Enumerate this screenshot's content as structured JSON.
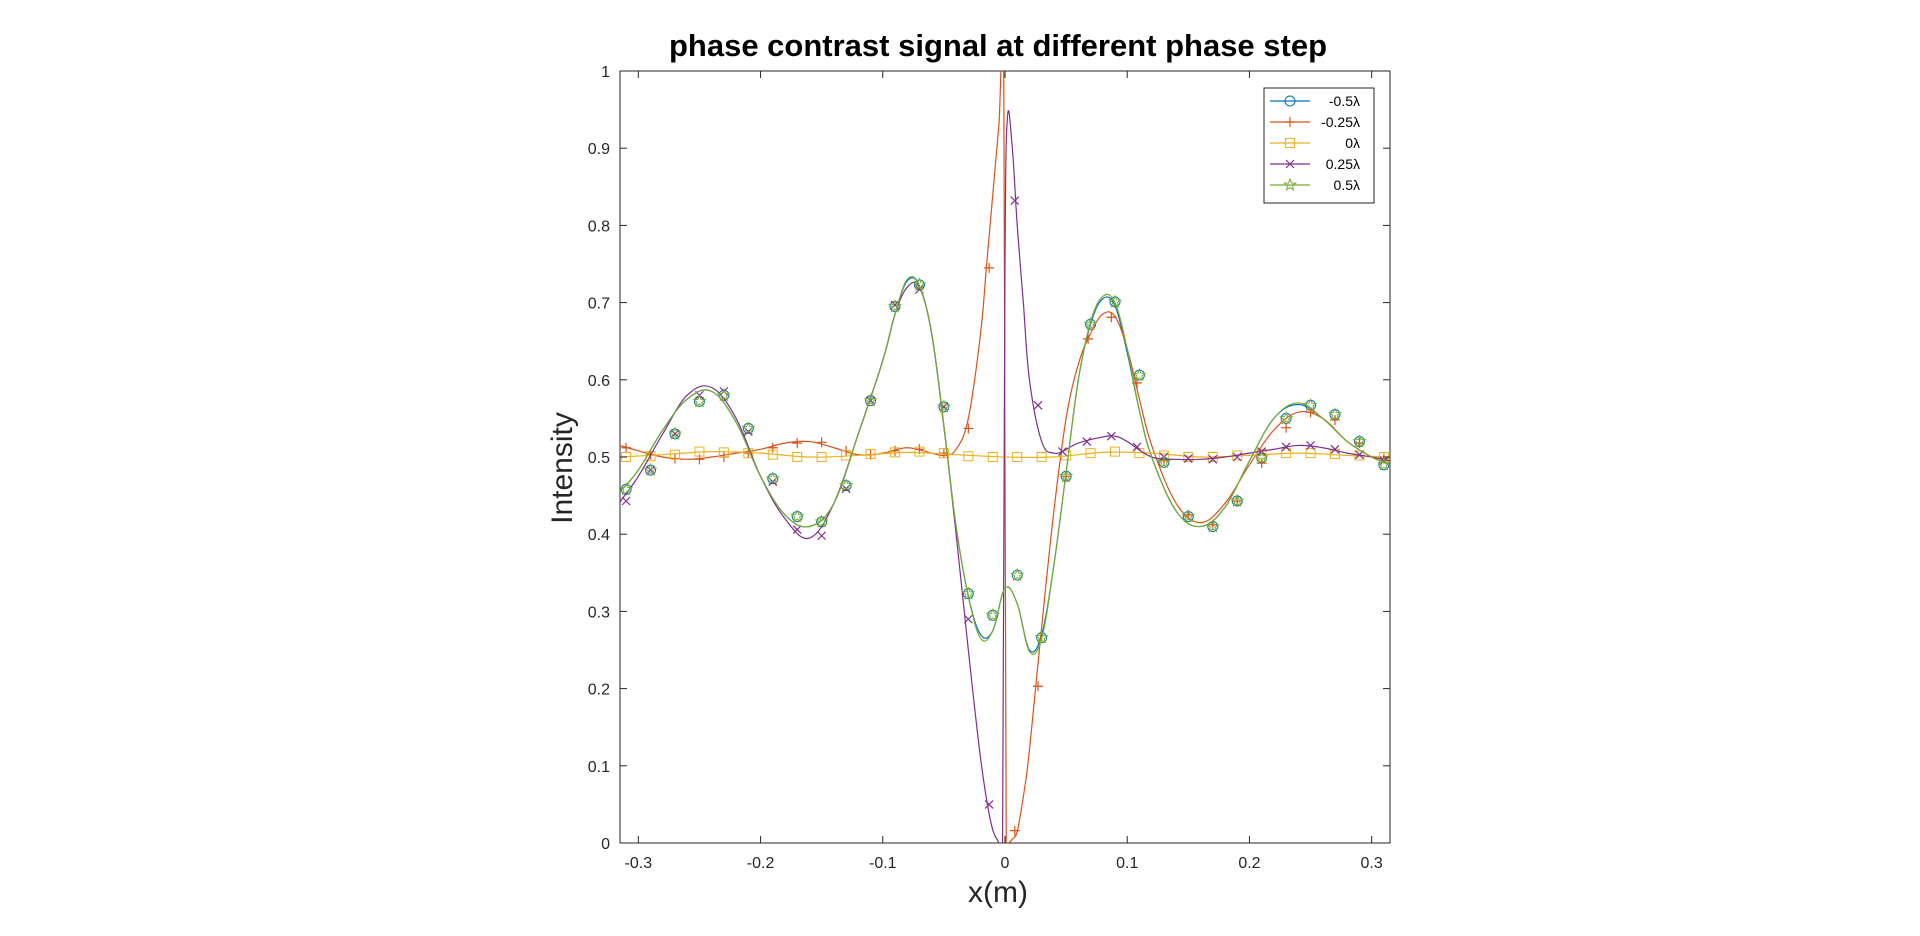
{
  "chart_data": {
    "type": "line",
    "title": "phase contrast signal at different phase step",
    "xlabel": "x(m)",
    "ylabel": "Intensity",
    "xlim": [
      -0.315,
      0.315
    ],
    "ylim": [
      0,
      1
    ],
    "x_ticks": [
      -0.3,
      -0.2,
      -0.1,
      0,
      0.1,
      0.2,
      0.3
    ],
    "x_tick_labels": [
      "-0.3",
      "-0.2",
      "-0.1",
      "0",
      "0.1",
      "0.2",
      "0.3"
    ],
    "y_ticks": [
      0,
      0.1,
      0.2,
      0.3,
      0.4,
      0.5,
      0.6,
      0.7,
      0.8,
      0.9,
      1
    ],
    "y_tick_labels": [
      "0",
      "0.1",
      "0.2",
      "0.3",
      "0.4",
      "0.5",
      "0.6",
      "0.7",
      "0.8",
      "0.9",
      "1"
    ],
    "grid": false,
    "legend_position": "top-right",
    "series": [
      {
        "name": "-0.5λ",
        "color": "#0072BD",
        "marker": "circle",
        "x": [
          -0.315,
          -0.3,
          -0.28,
          -0.26,
          -0.24,
          -0.22,
          -0.2,
          -0.18,
          -0.16,
          -0.14,
          -0.12,
          -0.1,
          -0.09,
          -0.08,
          -0.07,
          -0.06,
          -0.05,
          -0.04,
          -0.03,
          -0.02,
          -0.01,
          0,
          0.01,
          0.02,
          0.03,
          0.04,
          0.05,
          0.06,
          0.07,
          0.08,
          0.09,
          0.1,
          0.11,
          0.12,
          0.14,
          0.16,
          0.18,
          0.2,
          0.22,
          0.24,
          0.26,
          0.28,
          0.3,
          0.315
        ],
        "y": [
          0.455,
          0.483,
          0.535,
          0.575,
          0.585,
          0.545,
          0.475,
          0.425,
          0.41,
          0.44,
          0.53,
          0.625,
          0.685,
          0.728,
          0.722,
          0.66,
          0.54,
          0.41,
          0.32,
          0.27,
          0.275,
          0.33,
          0.31,
          0.25,
          0.27,
          0.36,
          0.48,
          0.6,
          0.672,
          0.705,
          0.696,
          0.635,
          0.56,
          0.5,
          0.43,
          0.41,
          0.435,
          0.495,
          0.55,
          0.568,
          0.55,
          0.52,
          0.5,
          0.49
        ],
        "marker_x": [
          -0.31,
          -0.29,
          -0.27,
          -0.25,
          -0.23,
          -0.21,
          -0.19,
          -0.17,
          -0.15,
          -0.13,
          -0.11,
          -0.09,
          -0.07,
          -0.05,
          -0.03,
          -0.01,
          0.01,
          0.03,
          0.05,
          0.07,
          0.09,
          0.11,
          0.13,
          0.15,
          0.17,
          0.19,
          0.21,
          0.23,
          0.25,
          0.27,
          0.29,
          0.31
        ],
        "marker_y": [
          0.458,
          0.483,
          0.53,
          0.572,
          0.58,
          0.537,
          0.472,
          0.423,
          0.416,
          0.463,
          0.573,
          0.695,
          0.723,
          0.565,
          0.323,
          0.295,
          0.347,
          0.266,
          0.475,
          0.672,
          0.701,
          0.606,
          0.493,
          0.423,
          0.41,
          0.443,
          0.499,
          0.55,
          0.567,
          0.555,
          0.52,
          0.49
        ]
      },
      {
        "name": "-0.25λ",
        "color": "#D95319",
        "marker": "plus",
        "x": [
          -0.315,
          -0.3,
          -0.28,
          -0.26,
          -0.24,
          -0.22,
          -0.2,
          -0.18,
          -0.16,
          -0.14,
          -0.12,
          -0.1,
          -0.08,
          -0.06,
          -0.05,
          -0.04,
          -0.03,
          -0.02,
          -0.015,
          -0.01,
          -0.005,
          -0.001,
          0.001,
          0.003,
          0.006,
          0.01,
          0.015,
          0.02,
          0.03,
          0.04,
          0.05,
          0.06,
          0.07,
          0.08,
          0.09,
          0.1,
          0.11,
          0.12,
          0.14,
          0.16,
          0.18,
          0.2,
          0.22,
          0.24,
          0.26,
          0.28,
          0.3,
          0.315
        ],
        "y": [
          0.515,
          0.508,
          0.5,
          0.497,
          0.5,
          0.505,
          0.51,
          0.518,
          0.52,
          0.512,
          0.503,
          0.505,
          0.512,
          0.505,
          0.502,
          0.51,
          0.55,
          0.66,
          0.75,
          0.84,
          0.93,
          0.99,
          0.0,
          0.0,
          0.005,
          0.015,
          0.06,
          0.12,
          0.28,
          0.43,
          0.55,
          0.62,
          0.66,
          0.685,
          0.682,
          0.64,
          0.575,
          0.515,
          0.44,
          0.415,
          0.44,
          0.49,
          0.535,
          0.558,
          0.55,
          0.52,
          0.5,
          0.49
        ],
        "marker_x": [
          -0.31,
          -0.29,
          -0.27,
          -0.25,
          -0.23,
          -0.21,
          -0.19,
          -0.17,
          -0.15,
          -0.13,
          -0.11,
          -0.09,
          -0.07,
          -0.05,
          -0.03,
          -0.013,
          0.008,
          0.027,
          0.05,
          0.068,
          0.087,
          0.108,
          0.13,
          0.15,
          0.17,
          0.19,
          0.21,
          0.23,
          0.25,
          0.27,
          0.29,
          0.31
        ],
        "marker_y": [
          0.512,
          0.503,
          0.498,
          0.497,
          0.5,
          0.505,
          0.512,
          0.518,
          0.519,
          0.508,
          0.503,
          0.508,
          0.51,
          0.505,
          0.537,
          0.745,
          0.016,
          0.203,
          0.475,
          0.653,
          0.681,
          0.596,
          0.495,
          0.425,
          0.412,
          0.443,
          0.492,
          0.538,
          0.558,
          0.548,
          0.518,
          0.498
        ]
      },
      {
        "name": "0λ",
        "color": "#EDB120",
        "marker": "square",
        "x": [
          -0.315,
          -0.28,
          -0.24,
          -0.2,
          -0.16,
          -0.12,
          -0.08,
          -0.04,
          0,
          0.04,
          0.08,
          0.12,
          0.16,
          0.2,
          0.24,
          0.28,
          0.315
        ],
        "y": [
          0.5,
          0.503,
          0.507,
          0.505,
          0.5,
          0.502,
          0.506,
          0.503,
          0.5,
          0.5,
          0.506,
          0.505,
          0.5,
          0.502,
          0.505,
          0.502,
          0.5
        ],
        "marker_x": [
          -0.31,
          -0.29,
          -0.27,
          -0.25,
          -0.23,
          -0.21,
          -0.19,
          -0.17,
          -0.15,
          -0.13,
          -0.11,
          -0.09,
          -0.07,
          -0.05,
          -0.03,
          -0.01,
          0.01,
          0.03,
          0.05,
          0.07,
          0.09,
          0.11,
          0.13,
          0.15,
          0.17,
          0.19,
          0.21,
          0.23,
          0.25,
          0.27,
          0.29,
          0.31
        ],
        "marker_y": [
          0.5,
          0.501,
          0.503,
          0.507,
          0.506,
          0.505,
          0.503,
          0.5,
          0.5,
          0.502,
          0.504,
          0.506,
          0.507,
          0.505,
          0.501,
          0.5,
          0.5,
          0.5,
          0.502,
          0.505,
          0.507,
          0.505,
          0.502,
          0.5,
          0.5,
          0.502,
          0.504,
          0.505,
          0.505,
          0.504,
          0.502,
          0.5
        ]
      },
      {
        "name": "0.25λ",
        "color": "#7E2F8E",
        "marker": "x",
        "x": [
          -0.315,
          -0.3,
          -0.28,
          -0.26,
          -0.24,
          -0.22,
          -0.2,
          -0.18,
          -0.16,
          -0.14,
          -0.12,
          -0.1,
          -0.09,
          -0.08,
          -0.07,
          -0.06,
          -0.05,
          -0.04,
          -0.03,
          -0.02,
          -0.012,
          -0.006,
          -0.002,
          0,
          0.002,
          0.006,
          0.01,
          0.015,
          0.02,
          0.03,
          0.04,
          0.05,
          0.06,
          0.08,
          0.09,
          0.1,
          0.12,
          0.14,
          0.16,
          0.18,
          0.2,
          0.22,
          0.24,
          0.26,
          0.28,
          0.3,
          0.315
        ],
        "y": [
          0.442,
          0.475,
          0.53,
          0.58,
          0.59,
          0.55,
          0.475,
          0.42,
          0.395,
          0.44,
          0.53,
          0.625,
          0.685,
          0.72,
          0.72,
          0.66,
          0.54,
          0.4,
          0.25,
          0.11,
          0.03,
          0.003,
          0.0,
          0.75,
          0.94,
          0.9,
          0.8,
          0.7,
          0.6,
          0.52,
          0.505,
          0.51,
          0.518,
          0.526,
          0.527,
          0.52,
          0.5,
          0.497,
          0.497,
          0.5,
          0.505,
          0.51,
          0.515,
          0.512,
          0.505,
          0.5,
          0.495
        ],
        "marker_x": [
          -0.31,
          -0.29,
          -0.27,
          -0.25,
          -0.23,
          -0.21,
          -0.19,
          -0.17,
          -0.15,
          -0.13,
          -0.11,
          -0.09,
          -0.07,
          -0.05,
          -0.03,
          -0.013,
          0.008,
          0.027,
          0.047,
          0.067,
          0.087,
          0.108,
          0.13,
          0.15,
          0.17,
          0.19,
          0.21,
          0.23,
          0.25,
          0.27,
          0.29,
          0.31
        ],
        "marker_y": [
          0.443,
          0.483,
          0.53,
          0.58,
          0.585,
          0.533,
          0.468,
          0.406,
          0.398,
          0.459,
          0.573,
          0.697,
          0.717,
          0.565,
          0.29,
          0.05,
          0.832,
          0.567,
          0.507,
          0.52,
          0.527,
          0.513,
          0.5,
          0.498,
          0.497,
          0.5,
          0.507,
          0.513,
          0.515,
          0.51,
          0.503,
          0.495
        ]
      },
      {
        "name": "0.5λ",
        "color": "#77AC30",
        "marker": "pentagram",
        "x": [
          -0.315,
          -0.3,
          -0.28,
          -0.26,
          -0.24,
          -0.22,
          -0.2,
          -0.18,
          -0.16,
          -0.14,
          -0.12,
          -0.1,
          -0.09,
          -0.08,
          -0.07,
          -0.06,
          -0.05,
          -0.04,
          -0.03,
          -0.02,
          -0.01,
          0,
          0.01,
          0.02,
          0.03,
          0.04,
          0.05,
          0.06,
          0.07,
          0.08,
          0.09,
          0.1,
          0.11,
          0.12,
          0.14,
          0.16,
          0.18,
          0.2,
          0.22,
          0.24,
          0.26,
          0.28,
          0.3,
          0.315
        ],
        "y": [
          0.455,
          0.483,
          0.535,
          0.575,
          0.585,
          0.545,
          0.475,
          0.425,
          0.41,
          0.44,
          0.53,
          0.625,
          0.685,
          0.73,
          0.722,
          0.66,
          0.54,
          0.41,
          0.32,
          0.265,
          0.275,
          0.33,
          0.31,
          0.248,
          0.265,
          0.36,
          0.48,
          0.6,
          0.675,
          0.708,
          0.7,
          0.64,
          0.56,
          0.5,
          0.43,
          0.41,
          0.435,
          0.495,
          0.55,
          0.57,
          0.55,
          0.52,
          0.5,
          0.49
        ],
        "marker_x": [
          -0.31,
          -0.29,
          -0.27,
          -0.25,
          -0.23,
          -0.21,
          -0.19,
          -0.17,
          -0.15,
          -0.13,
          -0.11,
          -0.09,
          -0.07,
          -0.05,
          -0.03,
          -0.01,
          0.01,
          0.03,
          0.05,
          0.07,
          0.09,
          0.11,
          0.13,
          0.15,
          0.17,
          0.19,
          0.21,
          0.23,
          0.25,
          0.27,
          0.29,
          0.31
        ],
        "marker_y": [
          0.458,
          0.483,
          0.53,
          0.572,
          0.58,
          0.537,
          0.472,
          0.423,
          0.416,
          0.463,
          0.573,
          0.695,
          0.723,
          0.565,
          0.323,
          0.295,
          0.347,
          0.266,
          0.475,
          0.672,
          0.701,
          0.606,
          0.493,
          0.423,
          0.41,
          0.443,
          0.499,
          0.55,
          0.567,
          0.555,
          0.52,
          0.49
        ]
      }
    ]
  }
}
